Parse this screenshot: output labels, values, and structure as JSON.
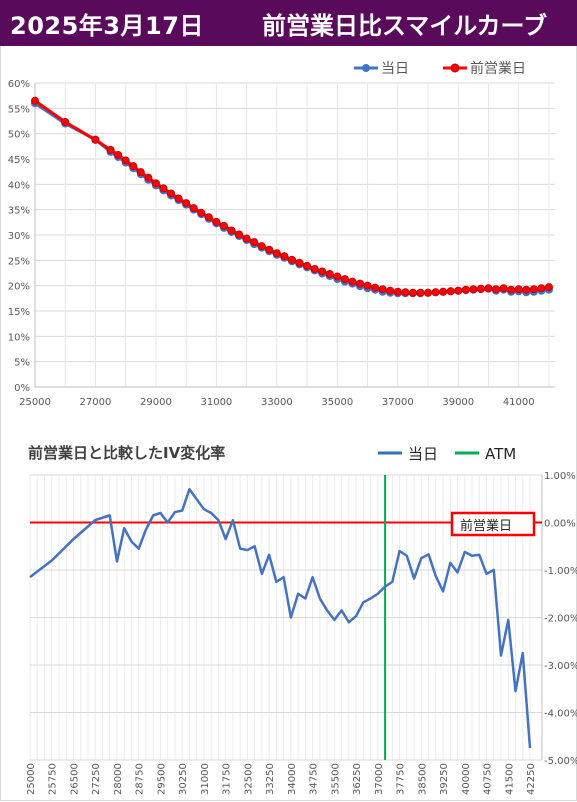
{
  "header": {
    "date": "2025年3月17日",
    "title": "前営業日比スマイルカーブ",
    "bg_color": "#5a0a5a"
  },
  "colors": {
    "today": "#4472c4",
    "prev_day": "#ff0000",
    "atm": "#00b050",
    "change_line": "#4472c4",
    "zero_line": "#ff0000"
  },
  "chart_data": [
    {
      "type": "line",
      "title": "",
      "legend": [
        "当日",
        "前営業日"
      ],
      "legend_position": "top-right",
      "grid": true,
      "xlim": [
        25000,
        42200
      ],
      "ylim": [
        0,
        60
      ],
      "x_ticks": [
        25000,
        27000,
        29000,
        31000,
        33000,
        35000,
        37000,
        39000,
        41000
      ],
      "y_ticks": [
        "0%",
        "5%",
        "10%",
        "15%",
        "20%",
        "25%",
        "30%",
        "35%",
        "40%",
        "45%",
        "50%",
        "55%",
        "60%"
      ],
      "series": [
        {
          "name": "当日",
          "x": [
            25000,
            26000,
            27000,
            27500,
            27750,
            28000,
            28250,
            28500,
            28750,
            29000,
            29250,
            29500,
            29750,
            30000,
            30250,
            30500,
            30750,
            31000,
            31250,
            31500,
            31750,
            32000,
            32250,
            32500,
            32750,
            33000,
            33250,
            33500,
            33750,
            34000,
            34250,
            34500,
            34750,
            35000,
            35250,
            35500,
            35750,
            36000,
            36250,
            36500,
            36750,
            37000,
            37250,
            37500,
            37750,
            38000,
            38250,
            38500,
            38750,
            39000,
            39250,
            39500,
            39750,
            40000,
            40250,
            40500,
            40750,
            41000,
            41250,
            41500,
            41750,
            42000
          ],
          "values": [
            56.0,
            52.0,
            48.8,
            46.4,
            45.4,
            44.3,
            43.2,
            42.0,
            40.9,
            39.8,
            38.8,
            37.8,
            36.9,
            36.0,
            35.0,
            34.1,
            33.2,
            32.3,
            31.4,
            30.6,
            29.8,
            29.0,
            28.2,
            27.5,
            26.8,
            26.1,
            25.5,
            24.8,
            24.2,
            23.6,
            23.0,
            22.4,
            21.9,
            21.3,
            20.8,
            20.4,
            19.9,
            19.5,
            19.2,
            18.8,
            18.6,
            18.5,
            18.5,
            18.5,
            18.5,
            18.6,
            18.7,
            18.8,
            18.9,
            19.0,
            19.1,
            19.2,
            19.3,
            19.4,
            19.0,
            19.2,
            18.8,
            18.9,
            18.7,
            18.8,
            19.0,
            19.2
          ]
        },
        {
          "name": "前営業日",
          "x": [
            25000,
            26000,
            27000,
            27500,
            27750,
            28000,
            28250,
            28500,
            28750,
            29000,
            29250,
            29500,
            29750,
            30000,
            30250,
            30500,
            30750,
            31000,
            31250,
            31500,
            31750,
            32000,
            32250,
            32500,
            32750,
            33000,
            33250,
            33500,
            33750,
            34000,
            34250,
            34500,
            34750,
            35000,
            35250,
            35500,
            35750,
            36000,
            36250,
            36500,
            36750,
            37000,
            37250,
            37500,
            37750,
            38000,
            38250,
            38500,
            38750,
            39000,
            39250,
            39500,
            39750,
            40000,
            40250,
            40500,
            40750,
            41000,
            41250,
            41500,
            41750,
            42000
          ],
          "values": [
            56.5,
            52.3,
            48.8,
            46.8,
            45.8,
            44.7,
            43.6,
            42.4,
            41.3,
            40.2,
            39.2,
            38.2,
            37.2,
            36.3,
            35.3,
            34.4,
            33.5,
            32.6,
            31.8,
            30.9,
            30.1,
            29.3,
            28.6,
            27.8,
            27.1,
            26.4,
            25.8,
            25.1,
            24.5,
            23.9,
            23.3,
            22.8,
            22.3,
            21.8,
            21.3,
            20.8,
            20.4,
            20.0,
            19.6,
            19.3,
            19.0,
            18.8,
            18.7,
            18.6,
            18.6,
            18.6,
            18.7,
            18.8,
            18.9,
            19.0,
            19.2,
            19.3,
            19.4,
            19.5,
            19.3,
            19.5,
            19.2,
            19.3,
            19.2,
            19.3,
            19.5,
            19.7
          ]
        }
      ]
    },
    {
      "type": "line",
      "title": "前営業日と比較したIV変化率",
      "legend": [
        "当日",
        "ATM"
      ],
      "legend_position": "top-right",
      "grid": true,
      "ylim": [
        -5,
        1
      ],
      "y_axis_side": "right",
      "y_ticks": [
        "1.00%",
        "0.00%",
        "-1.00%",
        "-2.00%",
        "-3.00%",
        "-4.00%",
        "-5.00%"
      ],
      "x_tick_labels": [
        "25000",
        "25750",
        "26500",
        "27250",
        "28000",
        "28750",
        "29500",
        "30250",
        "31000",
        "31750",
        "32500",
        "33250",
        "34000",
        "34750",
        "35500",
        "36250",
        "37000",
        "37750",
        "38500",
        "39250",
        "40000",
        "40750",
        "41500",
        "42250"
      ],
      "atm_strike": 37250,
      "zero_line_label": "前営業日",
      "series": [
        {
          "name": "当日",
          "x": [
            25000,
            25750,
            26500,
            27250,
            27500,
            27750,
            28000,
            28250,
            28500,
            28750,
            29000,
            29250,
            29500,
            29750,
            30000,
            30250,
            30500,
            31000,
            31250,
            31500,
            31750,
            32000,
            32250,
            32500,
            32750,
            33000,
            33250,
            33500,
            33750,
            34000,
            34250,
            34500,
            34750,
            35000,
            35250,
            35500,
            35750,
            36000,
            36250,
            36500,
            36750,
            37000,
            37250,
            37500,
            37750,
            38000,
            38250,
            38500,
            38750,
            39000,
            39250,
            39500,
            39750,
            40000,
            40250,
            40500,
            40750,
            41000,
            41250,
            41500,
            41750,
            42000,
            42250
          ],
          "values": [
            -1.15,
            -0.8,
            -0.35,
            0.05,
            0.1,
            0.15,
            -0.82,
            -0.12,
            -0.4,
            -0.55,
            -0.15,
            0.15,
            0.2,
            0.0,
            0.22,
            0.25,
            0.7,
            0.28,
            0.2,
            0.05,
            -0.35,
            0.05,
            -0.55,
            -0.58,
            -0.5,
            -1.08,
            -0.68,
            -1.25,
            -1.15,
            -2.0,
            -1.5,
            -1.6,
            -1.15,
            -1.6,
            -1.85,
            -2.05,
            -1.85,
            -2.1,
            -1.97,
            -1.68,
            -1.6,
            -1.5,
            -1.35,
            -1.25,
            -0.6,
            -0.7,
            -1.18,
            -0.75,
            -0.67,
            -1.13,
            -1.45,
            -0.85,
            -1.05,
            -0.62,
            -0.7,
            -0.68,
            -1.08,
            -1.0,
            -2.8,
            -2.05,
            -3.55,
            -2.75,
            -4.75
          ]
        }
      ]
    }
  ]
}
